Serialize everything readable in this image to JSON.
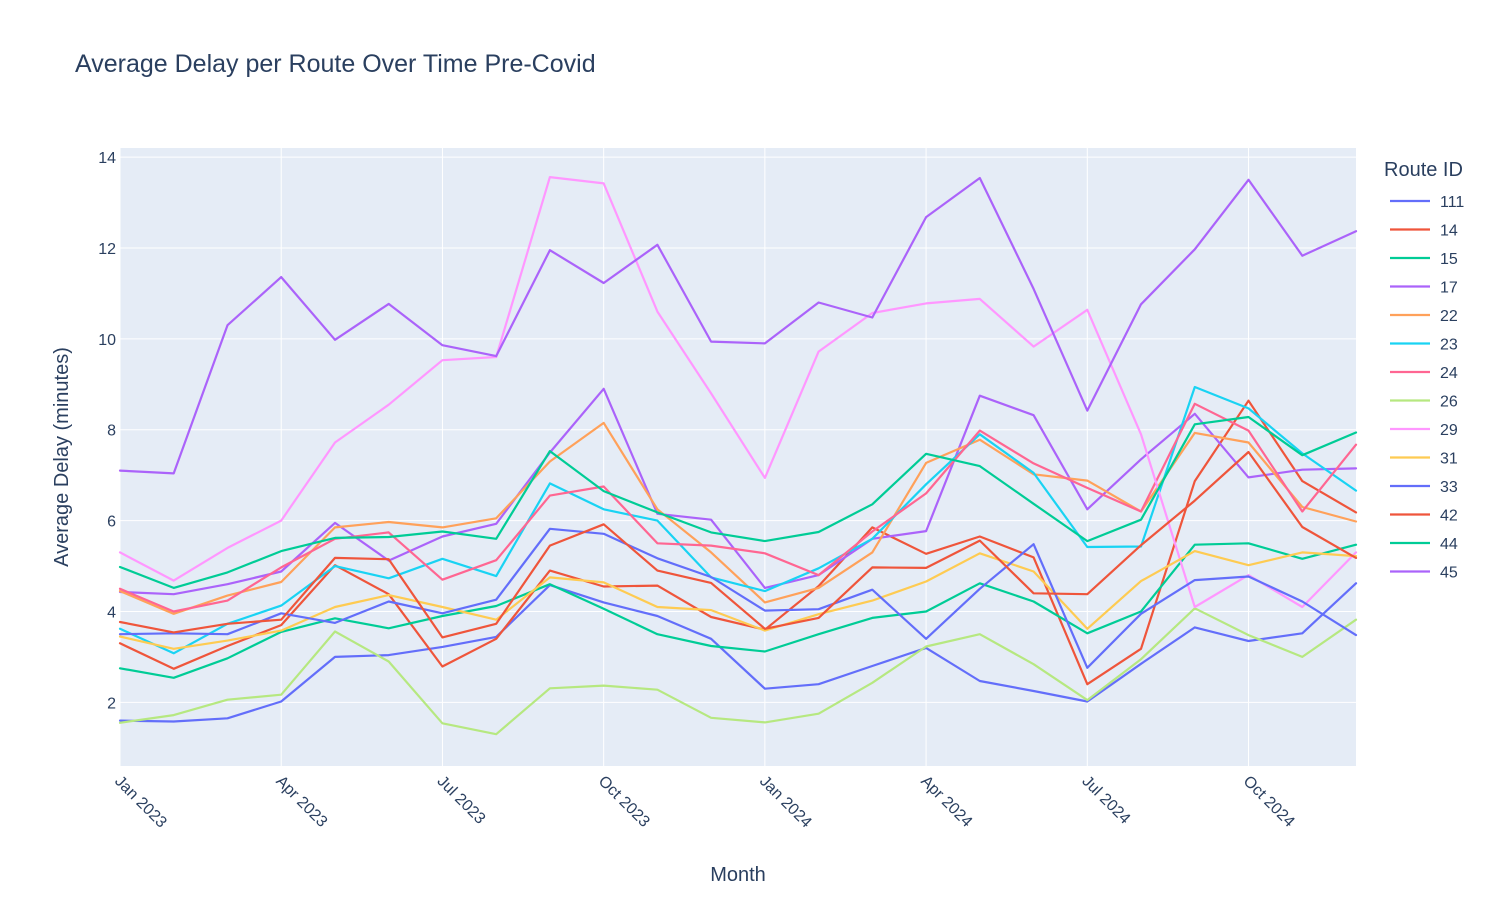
{
  "chart_data": {
    "type": "line",
    "title": "Average Delay per Route Over Time Pre-Covid",
    "xlabel": "Month",
    "ylabel": "Average Delay (minutes)",
    "legend_title": "Route ID",
    "legend_placement": "right",
    "grid": true,
    "x": [
      "2023-01",
      "2023-02",
      "2023-03",
      "2023-04",
      "2023-05",
      "2023-06",
      "2023-07",
      "2023-08",
      "2023-09",
      "2023-10",
      "2023-11",
      "2023-12",
      "2024-01",
      "2024-02",
      "2024-03",
      "2024-04",
      "2024-05",
      "2024-06",
      "2024-07",
      "2024-08",
      "2024-09",
      "2024-10",
      "2024-11",
      "2024-12"
    ],
    "x_ticks": [
      {
        "label": "Jan 2023",
        "index": 0
      },
      {
        "label": "Apr 2023",
        "index": 3
      },
      {
        "label": "Jul 2023",
        "index": 6
      },
      {
        "label": "Oct 2023",
        "index": 9
      },
      {
        "label": "Jan 2024",
        "index": 12
      },
      {
        "label": "Apr 2024",
        "index": 15
      },
      {
        "label": "Jul 2024",
        "index": 18
      },
      {
        "label": "Oct 2024",
        "index": 21
      }
    ],
    "ylim": [
      0.6,
      14.2
    ],
    "y_ticks": [
      2,
      4,
      6,
      8,
      10,
      12,
      14
    ],
    "series": [
      {
        "name": "111",
        "color": "#636efa",
        "values": [
          1.6,
          1.58,
          1.65,
          2.02,
          3.0,
          3.04,
          3.22,
          3.44,
          4.58,
          4.2,
          3.9,
          3.4,
          2.3,
          2.4,
          2.8,
          3.2,
          2.47,
          2.25,
          2.02,
          2.85,
          3.65,
          3.35,
          3.52,
          4.62
        ]
      },
      {
        "name": "14",
        "color": "#ef553b",
        "values": [
          3.3,
          2.74,
          3.24,
          3.7,
          5.02,
          4.38,
          2.79,
          3.4,
          4.9,
          4.55,
          4.57,
          3.88,
          3.6,
          4.56,
          5.85,
          5.27,
          5.65,
          5.19,
          2.4,
          3.18,
          6.87,
          8.64,
          6.87,
          6.18
        ]
      },
      {
        "name": "15",
        "color": "#00cc96",
        "values": [
          2.75,
          2.54,
          2.97,
          3.55,
          3.85,
          3.63,
          3.9,
          4.12,
          4.6,
          4.06,
          3.5,
          3.24,
          3.12,
          3.5,
          3.86,
          4.0,
          4.62,
          4.22,
          3.52,
          4.0,
          5.47,
          5.5,
          5.16,
          5.47
        ]
      },
      {
        "name": "17",
        "color": "#ab63fa",
        "values": [
          4.43,
          4.38,
          4.6,
          4.88,
          5.95,
          5.12,
          5.65,
          5.93,
          7.5,
          8.9,
          6.15,
          6.02,
          4.52,
          4.8,
          5.6,
          5.77,
          8.75,
          8.32,
          6.25,
          7.35,
          8.35,
          6.95,
          7.12,
          7.15
        ]
      },
      {
        "name": "22",
        "color": "#ffa15a",
        "values": [
          4.45,
          3.95,
          4.35,
          4.65,
          5.85,
          5.97,
          5.85,
          6.05,
          7.3,
          8.15,
          6.25,
          5.3,
          4.2,
          4.52,
          5.3,
          7.27,
          7.78,
          7.02,
          6.88,
          6.2,
          7.93,
          7.72,
          6.3,
          5.98
        ]
      },
      {
        "name": "23",
        "color": "#19d3f3",
        "values": [
          3.62,
          3.08,
          3.73,
          4.13,
          5.0,
          4.73,
          5.16,
          4.78,
          6.82,
          6.25,
          6.0,
          4.75,
          4.45,
          4.95,
          5.6,
          6.8,
          7.9,
          7.05,
          5.42,
          5.43,
          8.94,
          8.47,
          7.48,
          6.66
        ]
      },
      {
        "name": "24",
        "color": "#ff6692",
        "values": [
          4.5,
          4.0,
          4.24,
          4.97,
          5.6,
          5.74,
          4.7,
          5.13,
          6.55,
          6.75,
          5.5,
          5.45,
          5.28,
          4.8,
          5.76,
          6.6,
          7.98,
          7.26,
          6.72,
          6.2,
          8.57,
          7.98,
          6.2,
          7.67
        ]
      },
      {
        "name": "26",
        "color": "#b6e880",
        "values": [
          1.55,
          1.72,
          2.06,
          2.17,
          3.56,
          2.9,
          1.54,
          1.3,
          2.31,
          2.37,
          2.28,
          1.66,
          1.56,
          1.75,
          2.43,
          3.23,
          3.5,
          2.84,
          2.05,
          2.95,
          4.07,
          3.48,
          3.0,
          3.82
        ]
      },
      {
        "name": "29",
        "color": "#ff97ff",
        "values": [
          5.3,
          4.68,
          5.4,
          6.0,
          7.72,
          8.55,
          9.53,
          9.6,
          13.56,
          13.42,
          10.6,
          8.8,
          6.94,
          9.72,
          10.57,
          10.78,
          10.88,
          9.83,
          10.64,
          7.9,
          4.1,
          4.8,
          4.1,
          5.3
        ]
      },
      {
        "name": "31",
        "color": "#fecb52",
        "values": [
          3.45,
          3.18,
          3.36,
          3.58,
          4.1,
          4.36,
          4.1,
          3.82,
          4.75,
          4.64,
          4.1,
          4.03,
          3.58,
          3.94,
          4.24,
          4.66,
          5.28,
          4.88,
          3.62,
          4.67,
          5.33,
          5.02,
          5.3,
          5.22
        ]
      },
      {
        "name": "33",
        "color": "#636efa",
        "values": [
          3.5,
          3.52,
          3.5,
          3.96,
          3.75,
          4.22,
          3.96,
          4.26,
          5.82,
          5.71,
          5.17,
          4.76,
          4.02,
          4.05,
          4.48,
          3.4,
          4.5,
          5.48,
          2.76,
          3.95,
          4.69,
          4.77,
          4.22,
          3.48
        ]
      },
      {
        "name": "42",
        "color": "#ef553b",
        "values": [
          3.77,
          3.54,
          3.73,
          3.82,
          5.18,
          5.15,
          3.43,
          3.73,
          5.45,
          5.92,
          4.9,
          4.63,
          3.62,
          3.86,
          4.97,
          4.96,
          5.56,
          4.4,
          4.38,
          5.46,
          6.44,
          7.51,
          5.86,
          5.18
        ]
      },
      {
        "name": "44",
        "color": "#00cc96",
        "values": [
          4.98,
          4.52,
          4.86,
          5.33,
          5.62,
          5.64,
          5.76,
          5.6,
          7.53,
          6.65,
          6.18,
          5.74,
          5.55,
          5.75,
          6.36,
          7.47,
          7.2,
          6.37,
          5.55,
          6.02,
          8.12,
          8.28,
          7.44,
          7.94
        ]
      },
      {
        "name": "45",
        "color": "#ab63fa",
        "values": [
          7.1,
          7.04,
          10.3,
          11.36,
          9.98,
          10.77,
          9.86,
          9.62,
          11.95,
          11.23,
          12.07,
          9.94,
          9.9,
          10.8,
          10.47,
          12.68,
          13.54,
          11.1,
          8.42,
          10.76,
          11.97,
          13.5,
          11.83,
          12.37
        ]
      }
    ]
  }
}
